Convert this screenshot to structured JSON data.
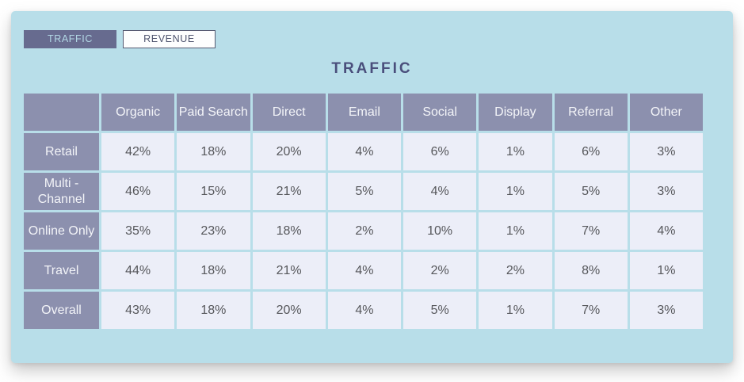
{
  "tabs": {
    "traffic_label": "TRAFFIC",
    "revenue_label": "REVENUE",
    "active": "TRAFFIC"
  },
  "title": "TRAFFIC",
  "chart_data": {
    "type": "table",
    "title": "TRAFFIC",
    "columns": [
      "",
      "Organic",
      "Paid Search",
      "Direct",
      "Email",
      "Social",
      "Display",
      "Referral",
      "Other"
    ],
    "rows": [
      {
        "label": "Retail",
        "values": [
          "42%",
          "18%",
          "20%",
          "4%",
          "6%",
          "1%",
          "6%",
          "3%"
        ]
      },
      {
        "label": "Multi - Channel",
        "values": [
          "46%",
          "15%",
          "21%",
          "5%",
          "4%",
          "1%",
          "5%",
          "3%"
        ]
      },
      {
        "label": "Online Only",
        "values": [
          "35%",
          "23%",
          "18%",
          "2%",
          "10%",
          "1%",
          "7%",
          "4%"
        ]
      },
      {
        "label": "Travel",
        "values": [
          "44%",
          "18%",
          "21%",
          "4%",
          "2%",
          "2%",
          "8%",
          "1%"
        ]
      },
      {
        "label": "Overall",
        "values": [
          "43%",
          "18%",
          "20%",
          "4%",
          "5%",
          "1%",
          "7%",
          "3%"
        ]
      }
    ],
    "value_unit": "percent"
  },
  "colors": {
    "card_background": "#b8dee9",
    "header_cell_background": "#8c90ae",
    "header_cell_text": "#f3f4f8",
    "data_cell_background": "#eceef8",
    "data_cell_text": "#56575b",
    "active_tab_background": "#676b8f",
    "active_tab_text": "#b3d9e6",
    "inactive_tab_background": "#fdfefe",
    "inactive_tab_text": "#4f556f",
    "title_text": "#4a4f7c"
  }
}
